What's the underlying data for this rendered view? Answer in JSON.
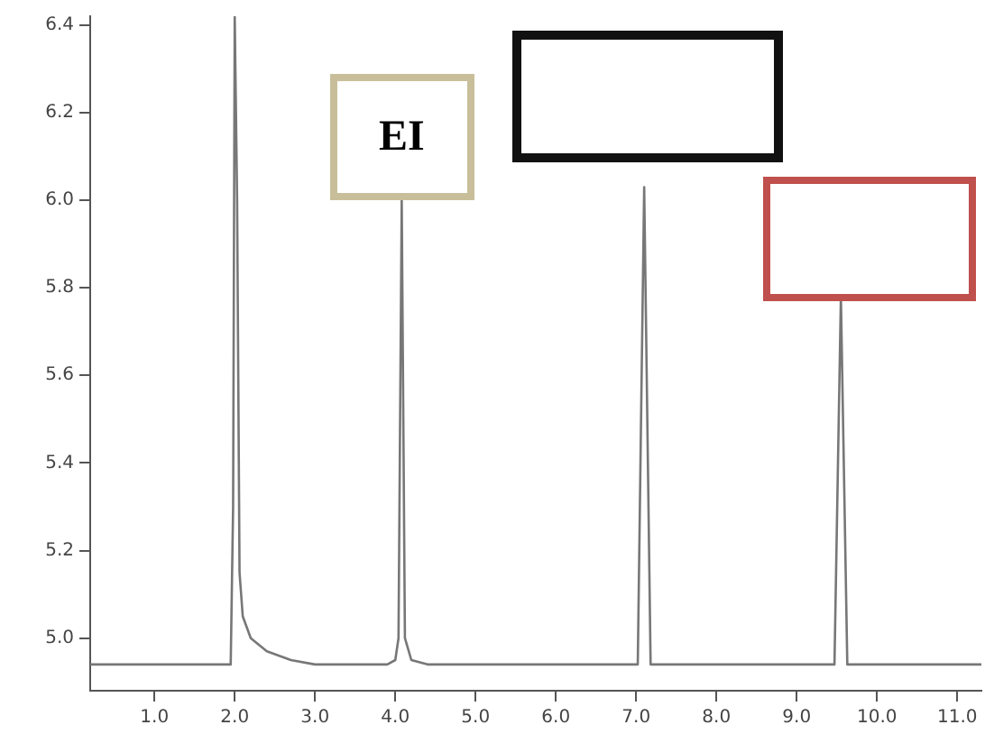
{
  "chart_data": {
    "type": "line",
    "x": [
      0.2,
      1.95,
      1.98,
      2.0,
      2.03,
      2.06,
      2.1,
      2.2,
      2.4,
      2.7,
      3.0,
      3.9,
      4.0,
      4.04,
      4.08,
      4.12,
      4.2,
      4.4,
      7.02,
      7.1,
      7.18,
      9.47,
      9.55,
      9.63,
      11.3
    ],
    "series": [
      {
        "color": "#777777",
        "values": [
          4.94,
          4.94,
          5.3,
          6.42,
          6.0,
          5.15,
          5.05,
          5.0,
          4.97,
          4.95,
          4.94,
          4.94,
          4.95,
          5.0,
          6.0,
          5.0,
          4.95,
          4.94,
          4.94,
          6.03,
          4.94,
          4.94,
          5.78,
          4.94,
          4.94
        ]
      }
    ],
    "xlim": [
      0.2,
      11.3
    ],
    "xticks": [
      {
        "value": 1,
        "label": "1.0"
      },
      {
        "value": 2,
        "label": "2.0"
      },
      {
        "value": 3,
        "label": "3.0"
      },
      {
        "value": 4,
        "label": "4.0"
      },
      {
        "value": 5,
        "label": "5.0"
      },
      {
        "value": 6,
        "label": "6.0"
      },
      {
        "value": 7,
        "label": "7.0"
      },
      {
        "value": 8,
        "label": "8.0"
      },
      {
        "value": 9,
        "label": "9.0"
      },
      {
        "value": 10,
        "label": "10.0"
      },
      {
        "value": 11,
        "label": "11.0"
      }
    ],
    "ylim": [
      4.88,
      6.42
    ],
    "yticks": [
      {
        "value": 5,
        "label": "5.0"
      },
      {
        "value": 5.2,
        "label": "5.2"
      },
      {
        "value": 5.4,
        "label": "5.4"
      },
      {
        "value": 5.6,
        "label": "5.6"
      },
      {
        "value": 5.8,
        "label": "5.8"
      },
      {
        "value": 6,
        "label": "6.0"
      },
      {
        "value": 6.2,
        "label": "6.2"
      },
      {
        "value": 6.4,
        "label": "6.4"
      }
    ],
    "annotations": [
      {
        "text": "EI",
        "x": 4.08,
        "y": 6.0
      }
    ],
    "grid": false,
    "legend": false,
    "marker": "none",
    "line_style": "solid"
  }
}
